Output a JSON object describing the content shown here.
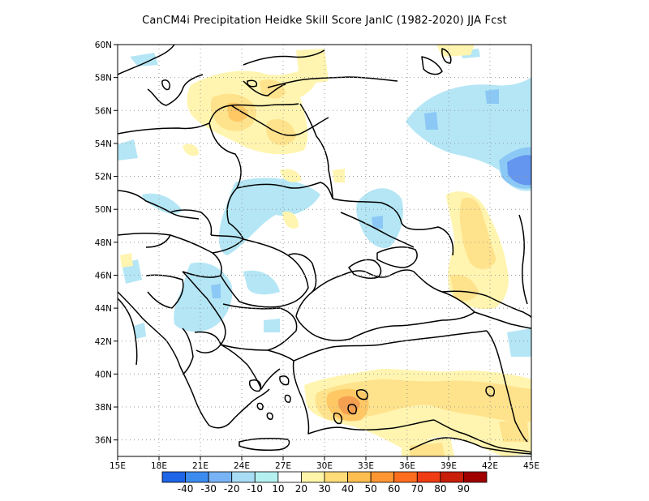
{
  "title": "CanCM4i  Precipitation Heidke Skill Score JanIC (1982-2020) JJA Fcst",
  "map": {
    "lon_range": [
      15,
      45
    ],
    "lat_range": [
      35,
      60
    ],
    "lon_ticks": [
      "15E",
      "18E",
      "21E",
      "24E",
      "27E",
      "30E",
      "33E",
      "36E",
      "39E",
      "42E",
      "45E"
    ],
    "lat_ticks": [
      "36N",
      "38N",
      "40N",
      "42N",
      "44N",
      "46N",
      "48N",
      "50N",
      "52N",
      "54N",
      "56N",
      "58N",
      "60N"
    ],
    "grid": "dotted"
  },
  "colorbar": {
    "labels": [
      "-40",
      "-30",
      "-20",
      "-10",
      "10",
      "20",
      "30",
      "40",
      "50",
      "60",
      "70",
      "80",
      "90"
    ],
    "colors": [
      "#1e64e6",
      "#3c8cf0",
      "#78b4f5",
      "#a8dcf5",
      "#b4f0f0",
      "#ffffff",
      "#fff5a8",
      "#ffdc78",
      "#ffbe50",
      "#ff9632",
      "#ff6e1e",
      "#f03c14",
      "#c81e0a",
      "#a00000"
    ]
  },
  "field_colors": {
    "neg10": "#b4e6f5",
    "neg20": "#8cc8f5",
    "neg30": "#6496f0",
    "pos10": "#fff5b0",
    "pos20": "#ffe28c",
    "pos30": "#ffc864",
    "pos40": "#f5a050"
  }
}
